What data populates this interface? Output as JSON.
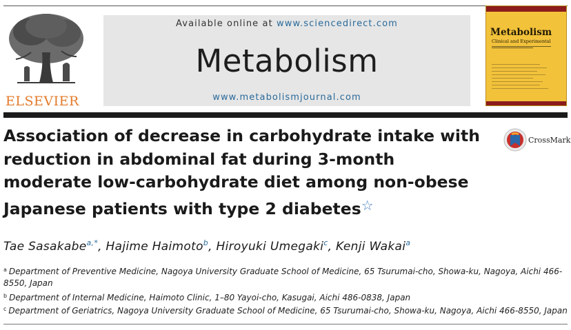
{
  "header": {
    "publisher": "ELSEVIER",
    "available_prefix": "Available online at",
    "available_link": "www.sciencedirect.com",
    "journal": "Metabolism",
    "journal_url": "www.metabolismjournal.com",
    "cover": {
      "title": "Metabolism",
      "subtitle": "Clinical and Experimental"
    },
    "colors": {
      "publisher_orange": "#e37a2a",
      "link_blue": "#2a6a9a",
      "cover_yellow": "#f2c23b"
    }
  },
  "article": {
    "title": "Association of decrease in carbohydrate intake with reduction in abdominal fat during 3-month moderate low-carbohydrate diet among non-obese Japanese patients with type 2 diabetes",
    "title_lines": [
      "Association of decrease in carbohydrate intake with",
      "reduction in abdominal fat during 3-month",
      "moderate low-carbohydrate diet among non-obese",
      "Japanese patients with type 2 diabetes"
    ],
    "title_note_symbol": "☆",
    "crossmark_label": "CrossMark",
    "authors": [
      {
        "name": "Tae Sasakabe",
        "sup": "a,*",
        "sep": ", "
      },
      {
        "name": "Hajime Haimoto",
        "sup": "b",
        "sep": ", "
      },
      {
        "name": "Hiroyuki Umegaki",
        "sup": "c",
        "sep": ", "
      },
      {
        "name": "Kenji Wakai",
        "sup": "a",
        "sep": ""
      }
    ],
    "affiliations": [
      {
        "key": "a",
        "text": "Department of Preventive Medicine, Nagoya University Graduate School of Medicine, 65 Tsurumai-cho, Showa-ku, Nagoya, Aichi 466-8550, Japan"
      },
      {
        "key": "b",
        "text": "Department of Internal Medicine, Haimoto Clinic, 1–80 Yayoi-cho, Kasugai, Aichi 486-0838, Japan"
      },
      {
        "key": "c",
        "text": "Department of Geriatrics, Nagoya University Graduate School of Medicine, 65 Tsurumai-cho, Showa-ku, Nagoya, Aichi 466-8550, Japan"
      }
    ]
  }
}
